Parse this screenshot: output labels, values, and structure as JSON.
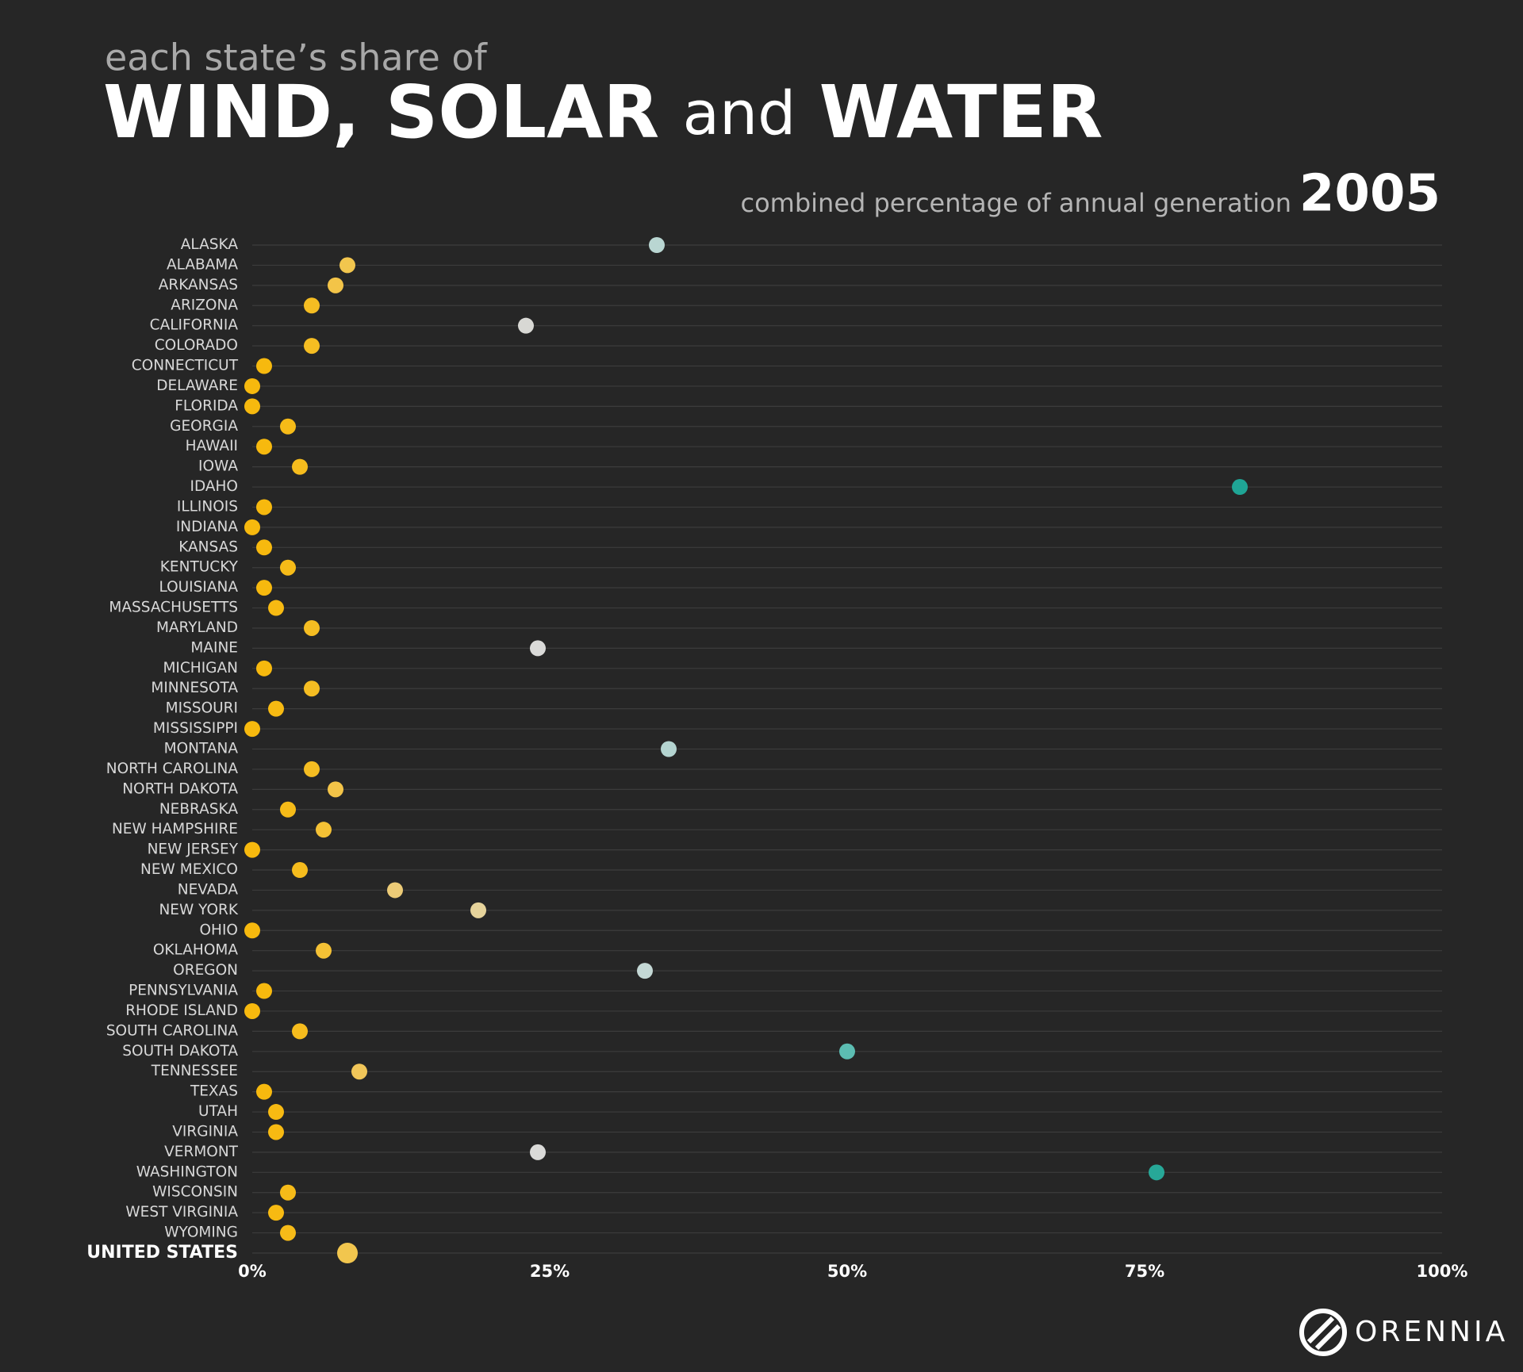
{
  "chart_data": {
    "type": "dot",
    "pretitle": "each state’s share of",
    "title_parts": [
      "WIND, SOLAR",
      "and",
      "WATER"
    ],
    "subtitle": "combined percentage of annual generation",
    "year": "2005",
    "brand": "ORENNIA",
    "categories": [
      "ALASKA",
      "ALABAMA",
      "ARKANSAS",
      "ARIZONA",
      "CALIFORNIA",
      "COLORADO",
      "CONNECTICUT",
      "DELAWARE",
      "FLORIDA",
      "GEORGIA",
      "HAWAII",
      "IOWA",
      "IDAHO",
      "ILLINOIS",
      "INDIANA",
      "KANSAS",
      "KENTUCKY",
      "LOUISIANA",
      "MASSACHUSETTS",
      "MARYLAND",
      "MAINE",
      "MICHIGAN",
      "MINNESOTA",
      "MISSOURI",
      "MISSISSIPPI",
      "MONTANA",
      "NORTH CAROLINA",
      "NORTH DAKOTA",
      "NEBRASKA",
      "NEW HAMPSHIRE",
      "NEW JERSEY",
      "NEW MEXICO",
      "NEVADA",
      "NEW YORK",
      "OHIO",
      "OKLAHOMA",
      "OREGON",
      "PENNSYLVANIA",
      "RHODE ISLAND",
      "SOUTH CAROLINA",
      "SOUTH DAKOTA",
      "TENNESSEE",
      "TEXAS",
      "UTAH",
      "VIRGINIA",
      "VERMONT",
      "WASHINGTON",
      "WISCONSIN",
      "WEST VIRGINIA",
      "WYOMING",
      "UNITED STATES"
    ],
    "values": [
      34,
      8,
      7,
      5,
      23,
      5,
      1,
      0,
      0,
      3,
      1,
      4,
      83,
      1,
      0,
      1,
      3,
      1,
      2,
      5,
      24,
      1,
      5,
      2,
      0,
      35,
      5,
      7,
      3,
      6,
      0,
      4,
      12,
      19,
      0,
      6,
      33,
      1,
      0,
      4,
      50,
      9,
      1,
      2,
      2,
      24,
      76,
      3,
      2,
      3,
      8
    ],
    "colors": [
      "#b9d6d2",
      "#f2c64e",
      "#f3c448",
      "#f5bd22",
      "#d8d8d4",
      "#f5bd22",
      "#f7b90e",
      "#f7b90e",
      "#f7b90e",
      "#f6bb18",
      "#f7b90e",
      "#f6bc1d",
      "#1fa595",
      "#f7b90e",
      "#f7b90e",
      "#f7b90e",
      "#f6bb18",
      "#f7b90e",
      "#f7ba12",
      "#f5bd22",
      "#dadad8",
      "#f7b90e",
      "#f5bd22",
      "#f7ba12",
      "#f7b90e",
      "#b4d4d0",
      "#f5bd22",
      "#f3c448",
      "#f6bb18",
      "#f4c135",
      "#f7b90e",
      "#f6bc1d",
      "#eccb77",
      "#e6d39b",
      "#f7b90e",
      "#f4c135",
      "#c4d8d5",
      "#f7b90e",
      "#f7b90e",
      "#f6bc1d",
      "#5cbdb2",
      "#f1c659",
      "#f7b90e",
      "#f7ba12",
      "#f7ba12",
      "#dadad8",
      "#27a898",
      "#f6bb18",
      "#f7ba12",
      "#f6bb18",
      "#f2c64e"
    ],
    "xlim": [
      0,
      100
    ],
    "xticks": [
      {
        "value": 0,
        "label": "0%"
      },
      {
        "value": 25,
        "label": "25%"
      },
      {
        "value": 50,
        "label": "50%"
      },
      {
        "value": 75,
        "label": "75%"
      },
      {
        "value": 100,
        "label": "100%"
      }
    ]
  }
}
